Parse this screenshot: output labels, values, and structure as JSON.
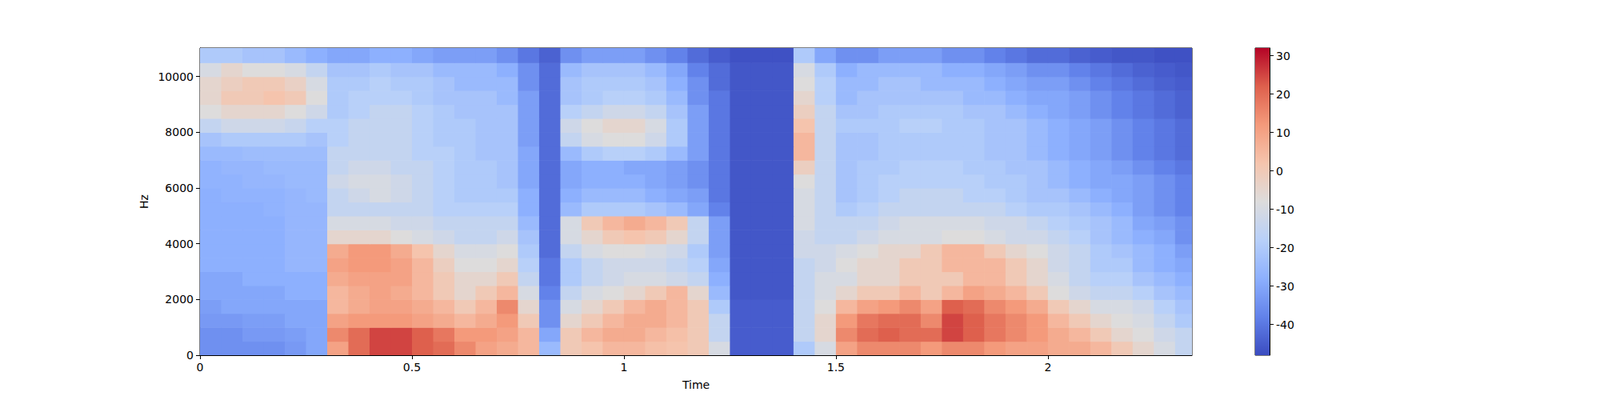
{
  "chart_data": {
    "type": "heatmap",
    "xlabel": "Time",
    "ylabel": "Hz",
    "xlim": [
      0,
      2.34
    ],
    "xticks": [
      0,
      0.5,
      1,
      1.5,
      2
    ],
    "ylim": [
      0,
      11025
    ],
    "yticks": [
      0,
      2000,
      4000,
      6000,
      8000,
      10000
    ],
    "grid": false,
    "x_edges": [
      0,
      0.05,
      0.1,
      0.15,
      0.2,
      0.25,
      0.3,
      0.35,
      0.4,
      0.45,
      0.5,
      0.55,
      0.6,
      0.65,
      0.7,
      0.75,
      0.8,
      0.85,
      0.9,
      0.95,
      1,
      1.05,
      1.1,
      1.15,
      1.2,
      1.25,
      1.3,
      1.35,
      1.4,
      1.45,
      1.5,
      1.55,
      1.6,
      1.65,
      1.7,
      1.75,
      1.8,
      1.85,
      1.9,
      1.95,
      2,
      2.05,
      2.1,
      2.15,
      2.2,
      2.25,
      2.3,
      2.34
    ],
    "y_edges": [
      0,
      500,
      1000,
      1500,
      2000,
      2500,
      3000,
      3500,
      4000,
      4500,
      5000,
      5500,
      6000,
      6500,
      7000,
      7500,
      8000,
      8500,
      9000,
      9500,
      10000,
      10500,
      11025
    ],
    "cells": [
      [
        -35,
        -35,
        -35,
        -35,
        -33,
        -30,
        10,
        20,
        25,
        25,
        22,
        20,
        15,
        10,
        8,
        5,
        -25,
        0,
        2,
        5,
        5,
        3,
        2,
        0,
        -10,
        -45,
        -45,
        -45,
        -20,
        -10,
        10,
        15,
        15,
        15,
        12,
        15,
        15,
        12,
        10,
        10,
        8,
        8,
        5,
        0,
        -5,
        -10,
        -15
      ],
      [
        -35,
        -35,
        -33,
        -33,
        -32,
        -30,
        15,
        20,
        25,
        25,
        22,
        18,
        12,
        12,
        10,
        5,
        -30,
        0,
        5,
        8,
        8,
        5,
        3,
        0,
        -15,
        -45,
        -45,
        -45,
        -15,
        -5,
        15,
        20,
        22,
        20,
        20,
        25,
        22,
        18,
        15,
        12,
        8,
        5,
        0,
        -5,
        -8,
        -12,
        -15
      ],
      [
        -33,
        -33,
        -32,
        -32,
        -30,
        -30,
        10,
        12,
        12,
        12,
        10,
        8,
        5,
        8,
        12,
        0,
        -35,
        -5,
        0,
        5,
        8,
        8,
        5,
        0,
        -15,
        -45,
        -45,
        -45,
        -15,
        -5,
        12,
        18,
        20,
        20,
        15,
        25,
        22,
        18,
        15,
        12,
        5,
        0,
        -5,
        -8,
        -10,
        -15,
        -20
      ],
      [
        -32,
        -30,
        -30,
        -30,
        -30,
        -30,
        5,
        8,
        10,
        10,
        8,
        5,
        0,
        5,
        15,
        -5,
        -35,
        -10,
        -5,
        0,
        5,
        8,
        5,
        0,
        -20,
        -45,
        -45,
        -45,
        -15,
        -8,
        5,
        10,
        12,
        15,
        10,
        22,
        20,
        15,
        12,
        8,
        0,
        -5,
        -10,
        -10,
        -12,
        -18,
        -22
      ],
      [
        -30,
        -30,
        -30,
        -30,
        -28,
        -28,
        5,
        8,
        10,
        8,
        5,
        0,
        -5,
        0,
        5,
        -10,
        -38,
        -15,
        -10,
        -8,
        -5,
        0,
        5,
        -5,
        -25,
        -46,
        -46,
        -46,
        -15,
        -10,
        -5,
        0,
        0,
        5,
        0,
        5,
        10,
        8,
        5,
        0,
        -8,
        -12,
        -15,
        -15,
        -18,
        -22,
        -25
      ],
      [
        -30,
        -30,
        -28,
        -28,
        -28,
        -28,
        8,
        10,
        10,
        10,
        5,
        0,
        -5,
        -5,
        0,
        -15,
        -40,
        -20,
        -15,
        -12,
        -10,
        -10,
        -12,
        -15,
        -28,
        -46,
        -46,
        -46,
        -15,
        -10,
        -10,
        -5,
        -5,
        0,
        0,
        0,
        5,
        5,
        0,
        -5,
        -10,
        -15,
        -18,
        -18,
        -22,
        -25,
        -28
      ],
      [
        -28,
        -28,
        -28,
        -28,
        -26,
        -26,
        10,
        12,
        12,
        10,
        5,
        -2,
        -8,
        -8,
        -5,
        -18,
        -40,
        -20,
        -15,
        -12,
        -12,
        -12,
        -15,
        -18,
        -30,
        -46,
        -46,
        -46,
        -15,
        -12,
        -8,
        -5,
        -5,
        0,
        0,
        5,
        5,
        5,
        0,
        -5,
        -12,
        -15,
        -20,
        -20,
        -25,
        -28,
        -30
      ],
      [
        -28,
        -28,
        -28,
        -28,
        -26,
        -26,
        8,
        12,
        12,
        8,
        2,
        -5,
        -10,
        -10,
        -8,
        -20,
        -42,
        -15,
        -10,
        -8,
        -8,
        -10,
        -12,
        -20,
        -32,
        -46,
        -46,
        -46,
        -12,
        -12,
        -10,
        -8,
        -5,
        -5,
        0,
        5,
        5,
        0,
        -5,
        -8,
        -12,
        -15,
        -20,
        -22,
        -25,
        -28,
        -32
      ],
      [
        -28,
        -28,
        -28,
        -28,
        -26,
        -26,
        -5,
        -5,
        -5,
        -8,
        -10,
        -12,
        -15,
        -15,
        -12,
        -22,
        -42,
        -10,
        -5,
        0,
        2,
        0,
        -5,
        -15,
        -32,
        -46,
        -46,
        -46,
        -12,
        -15,
        -15,
        -12,
        -10,
        -10,
        -10,
        -8,
        -8,
        -10,
        -12,
        -12,
        -15,
        -18,
        -22,
        -25,
        -28,
        -30,
        -35
      ],
      [
        -28,
        -28,
        -28,
        -28,
        -26,
        -26,
        -10,
        -10,
        -10,
        -12,
        -12,
        -15,
        -15,
        -15,
        -15,
        -25,
        -42,
        -10,
        0,
        5,
        8,
        5,
        0,
        -15,
        -32,
        -46,
        -46,
        -46,
        -10,
        -15,
        -15,
        -15,
        -12,
        -10,
        -10,
        -10,
        -10,
        -12,
        -12,
        -15,
        -18,
        -20,
        -22,
        -25,
        -30,
        -32,
        -35
      ],
      [
        -28,
        -28,
        -28,
        -27,
        -26,
        -26,
        -15,
        -15,
        -15,
        -15,
        -15,
        -18,
        -18,
        -18,
        -18,
        -28,
        -42,
        -25,
        -20,
        -20,
        -20,
        -22,
        -25,
        -30,
        -38,
        -46,
        -46,
        -46,
        -10,
        -15,
        -20,
        -18,
        -15,
        -15,
        -15,
        -15,
        -15,
        -15,
        -18,
        -20,
        -20,
        -22,
        -25,
        -28,
        -32,
        -35,
        -38
      ],
      [
        -28,
        -27,
        -27,
        -27,
        -26,
        -25,
        -15,
        -12,
        -10,
        -12,
        -15,
        -18,
        -20,
        -20,
        -20,
        -28,
        -42,
        -28,
        -25,
        -25,
        -25,
        -28,
        -30,
        -32,
        -40,
        -46,
        -46,
        -46,
        -10,
        -15,
        -22,
        -20,
        -18,
        -15,
        -15,
        -15,
        -18,
        -18,
        -20,
        -22,
        -22,
        -25,
        -28,
        -30,
        -32,
        -35,
        -38
      ],
      [
        -27,
        -27,
        -26,
        -26,
        -25,
        -25,
        -12,
        -10,
        -10,
        -12,
        -15,
        -18,
        -20,
        -20,
        -22,
        -30,
        -42,
        -30,
        -28,
        -28,
        -28,
        -30,
        -32,
        -35,
        -40,
        -46,
        -46,
        -46,
        -8,
        -15,
        -22,
        -20,
        -18,
        -18,
        -18,
        -18,
        -18,
        -20,
        -20,
        -22,
        -25,
        -28,
        -30,
        -30,
        -32,
        -35,
        -38
      ],
      [
        -27,
        -26,
        -26,
        -25,
        -25,
        -25,
        -15,
        -12,
        -12,
        -15,
        -15,
        -18,
        -20,
        -20,
        -22,
        -30,
        -42,
        -30,
        -28,
        -28,
        -30,
        -30,
        -32,
        -35,
        -40,
        -46,
        -46,
        -46,
        -2,
        -15,
        -22,
        -20,
        -20,
        -18,
        -18,
        -18,
        -20,
        -20,
        -22,
        -22,
        -25,
        -28,
        -30,
        -32,
        -35,
        -38,
        -40
      ],
      [
        -25,
        -25,
        -24,
        -24,
        -24,
        -24,
        -15,
        -15,
        -15,
        -15,
        -18,
        -18,
        -20,
        -22,
        -22,
        -30,
        -42,
        -25,
        -20,
        -18,
        -18,
        -20,
        -25,
        -32,
        -40,
        -46,
        -46,
        -46,
        5,
        -15,
        -22,
        -22,
        -20,
        -20,
        -20,
        -20,
        -20,
        -22,
        -22,
        -25,
        -28,
        -30,
        -32,
        -35,
        -38,
        -40,
        -42
      ],
      [
        -22,
        -20,
        -20,
        -20,
        -20,
        -22,
        -18,
        -15,
        -15,
        -15,
        -18,
        -20,
        -20,
        -22,
        -22,
        -32,
        -42,
        -15,
        -10,
        -8,
        -8,
        -12,
        -20,
        -32,
        -40,
        -46,
        -46,
        -46,
        5,
        -15,
        -22,
        -22,
        -20,
        -20,
        -20,
        -20,
        -20,
        -22,
        -22,
        -25,
        -28,
        -30,
        -32,
        -35,
        -38,
        -40,
        -42
      ],
      [
        -15,
        -12,
        -12,
        -12,
        -14,
        -18,
        -18,
        -15,
        -15,
        -15,
        -18,
        -20,
        -20,
        -22,
        -22,
        -32,
        -42,
        -12,
        -8,
        -5,
        -5,
        -10,
        -20,
        -32,
        -40,
        -46,
        -46,
        -46,
        2,
        -15,
        -20,
        -20,
        -20,
        -18,
        -18,
        -20,
        -20,
        -22,
        -22,
        -25,
        -28,
        -30,
        -32,
        -35,
        -38,
        -40,
        -42
      ],
      [
        -8,
        -5,
        -5,
        -5,
        -8,
        -12,
        -20,
        -18,
        -15,
        -15,
        -18,
        -20,
        -22,
        -22,
        -22,
        -32,
        -42,
        -18,
        -15,
        -12,
        -12,
        -15,
        -22,
        -32,
        -40,
        -46,
        -46,
        -46,
        -2,
        -15,
        -22,
        -22,
        -20,
        -20,
        -20,
        -20,
        -22,
        -22,
        -25,
        -28,
        -30,
        -32,
        -35,
        -38,
        -40,
        -42,
        -44
      ],
      [
        -5,
        0,
        0,
        2,
        0,
        -8,
        -20,
        -18,
        -18,
        -18,
        -20,
        -22,
        -22,
        -22,
        -25,
        -32,
        -42,
        -22,
        -20,
        -18,
        -18,
        -20,
        -25,
        -35,
        -40,
        -46,
        -46,
        -46,
        -5,
        -18,
        -25,
        -22,
        -22,
        -22,
        -22,
        -22,
        -25,
        -25,
        -28,
        -30,
        -30,
        -32,
        -35,
        -38,
        -40,
        -42,
        -44
      ],
      [
        -5,
        -2,
        0,
        0,
        -3,
        -10,
        -20,
        -20,
        -18,
        -20,
        -20,
        -22,
        -25,
        -25,
        -25,
        -35,
        -42,
        -22,
        -20,
        -20,
        -20,
        -22,
        -28,
        -35,
        -42,
        -46,
        -46,
        -46,
        -8,
        -18,
        -25,
        -25,
        -22,
        -22,
        -25,
        -25,
        -25,
        -28,
        -30,
        -32,
        -32,
        -35,
        -38,
        -40,
        -42,
        -44,
        -45
      ],
      [
        -10,
        -5,
        -8,
        -8,
        -10,
        -15,
        -22,
        -22,
        -20,
        -22,
        -22,
        -25,
        -25,
        -25,
        -28,
        -35,
        -42,
        -25,
        -22,
        -22,
        -22,
        -25,
        -30,
        -38,
        -42,
        -46,
        -46,
        -46,
        -10,
        -20,
        -28,
        -25,
        -25,
        -25,
        -25,
        -28,
        -28,
        -30,
        -32,
        -35,
        -35,
        -38,
        -40,
        -42,
        -44,
        -45,
        -46
      ],
      [
        -20,
        -20,
        -22,
        -22,
        -25,
        -28,
        -30,
        -30,
        -28,
        -28,
        -30,
        -32,
        -32,
        -32,
        -35,
        -40,
        -44,
        -35,
        -32,
        -32,
        -32,
        -35,
        -38,
        -42,
        -45,
        -47,
        -47,
        -47,
        -20,
        -30,
        -35,
        -35,
        -32,
        -32,
        -32,
        -35,
        -35,
        -38,
        -40,
        -42,
        -42,
        -44,
        -45,
        -46,
        -46,
        -47,
        -47
      ]
    ],
    "colorbar": {
      "range": [
        -48,
        32
      ],
      "ticks": [
        -40,
        -30,
        -20,
        -10,
        0,
        10,
        20,
        30
      ]
    }
  }
}
